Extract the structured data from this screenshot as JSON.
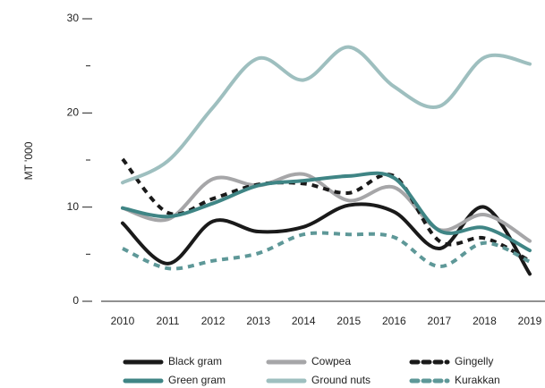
{
  "chart_data": {
    "type": "line",
    "y_label": "MT '000",
    "categories": [
      "2010",
      "2011",
      "2012",
      "2013",
      "2014",
      "2015",
      "2016",
      "2017",
      "2018",
      "2019"
    ],
    "ylim": [
      0,
      30
    ],
    "yticks": [
      0,
      10,
      20,
      30
    ],
    "yminor": [
      5,
      15,
      25
    ],
    "series": [
      {
        "name": "Black gram",
        "color": "#1a1a1a",
        "dashed": false,
        "values": [
          8.3,
          4.0,
          8.5,
          7.4,
          7.9,
          10.2,
          9.5,
          5.6,
          10.0,
          2.9
        ]
      },
      {
        "name": "Cowpea",
        "color": "#a6a6a8",
        "dashed": false,
        "values": [
          9.9,
          8.7,
          13.0,
          12.3,
          13.5,
          10.7,
          12.1,
          7.6,
          9.2,
          6.4
        ]
      },
      {
        "name": "Gingelly",
        "color": "#1a1a1a",
        "dashed": true,
        "values": [
          15.1,
          9.4,
          10.9,
          12.4,
          12.5,
          11.5,
          13.3,
          6.4,
          6.7,
          4.3
        ]
      },
      {
        "name": "Green gram",
        "color": "#3f8585",
        "dashed": false,
        "values": [
          9.9,
          9.0,
          10.4,
          12.3,
          12.8,
          13.3,
          13.1,
          7.5,
          7.8,
          5.4
        ]
      },
      {
        "name": "Ground nuts",
        "color": "#9ebfbf",
        "dashed": false,
        "values": [
          12.6,
          14.9,
          20.6,
          25.8,
          23.5,
          27.0,
          22.8,
          20.7,
          25.9,
          25.2
        ]
      },
      {
        "name": "Kurakkan",
        "color": "#5e9898",
        "dashed": true,
        "values": [
          5.6,
          3.5,
          4.3,
          5.1,
          7.1,
          7.1,
          6.8,
          3.7,
          6.2,
          4.2
        ]
      }
    ]
  }
}
